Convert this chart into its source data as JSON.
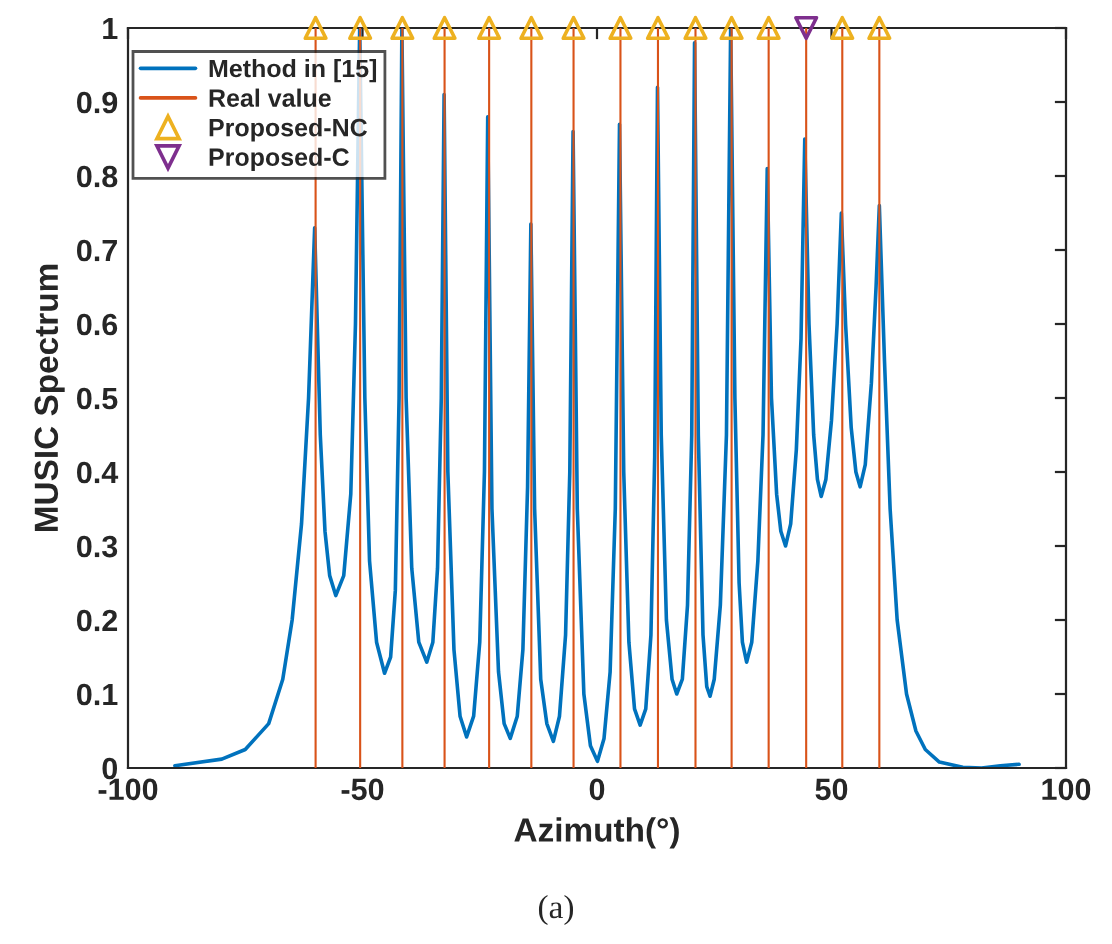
{
  "chart_data": {
    "type": "line",
    "xlabel": "Azimuth(°)",
    "ylabel": "MUSIC Spectrum",
    "xlim": [
      -100,
      100
    ],
    "xticks": [
      -100,
      -50,
      0,
      50,
      100
    ],
    "ylim": [
      0,
      1
    ],
    "yticks": [
      0,
      0.1,
      0.2,
      0.3,
      0.4,
      0.5,
      0.6,
      0.7,
      0.8,
      0.9,
      1
    ],
    "grid": false,
    "legend": "top left",
    "annotations": [
      "(a)"
    ],
    "series": [
      {
        "name": "Method in [15]",
        "color": "#0072bd",
        "marker": "none",
        "x": [
          -90,
          -80,
          -75,
          -70,
          -67,
          -65,
          -63,
          -61.5,
          -60.2,
          -59,
          -58,
          -57,
          -55.7,
          -54,
          -52.5,
          -51.5,
          -50.6,
          -49.5,
          -48.5,
          -47,
          -45.3,
          -44,
          -43,
          -42.2,
          -41.6,
          -40.7,
          -39.5,
          -38,
          -36.3,
          -35,
          -34,
          -33.2,
          -32.6,
          -31.8,
          -30.5,
          -29.2,
          -27.8,
          -26.3,
          -25,
          -24,
          -23.3,
          -22.4,
          -21,
          -19.8,
          -18.5,
          -17,
          -15.8,
          -14.8,
          -14.1,
          -13.3,
          -12,
          -10.7,
          -9.3,
          -8,
          -6.7,
          -5.8,
          -5.1,
          -4.2,
          -2.8,
          -1.4,
          0.1,
          1.5,
          2.8,
          3.9,
          4.8,
          5.7,
          6.8,
          8,
          9.2,
          10.4,
          11.5,
          12.3,
          12.9,
          13.7,
          14.8,
          16,
          17,
          18.2,
          19.3,
          20.2,
          20.8,
          21.6,
          22.6,
          23.4,
          24.1,
          25,
          26.3,
          27.6,
          28.5,
          29.4,
          30.3,
          31,
          31.9,
          33,
          34.3,
          35.4,
          36.3,
          37.2,
          38.3,
          39.2,
          40.2,
          41.3,
          42.5,
          43.5,
          44.3,
          45.2,
          46.2,
          47,
          47.8,
          48.8,
          50,
          51.2,
          52.1,
          53,
          54.2,
          55.2,
          56.1,
          57.2,
          58.5,
          59.5,
          60.2,
          61.3,
          62.5,
          64,
          66,
          68,
          70,
          73,
          78,
          82,
          86,
          90
        ],
        "values": [
          0.003,
          0.012,
          0.025,
          0.06,
          0.12,
          0.2,
          0.33,
          0.5,
          0.73,
          0.45,
          0.32,
          0.26,
          0.233,
          0.26,
          0.37,
          0.6,
          1.0,
          0.5,
          0.28,
          0.17,
          0.128,
          0.15,
          0.24,
          0.5,
          1.0,
          0.5,
          0.27,
          0.17,
          0.143,
          0.17,
          0.27,
          0.5,
          0.91,
          0.4,
          0.16,
          0.07,
          0.042,
          0.07,
          0.17,
          0.4,
          0.88,
          0.35,
          0.13,
          0.06,
          0.04,
          0.07,
          0.16,
          0.38,
          0.735,
          0.35,
          0.12,
          0.06,
          0.036,
          0.07,
          0.18,
          0.4,
          0.86,
          0.35,
          0.1,
          0.03,
          0.009,
          0.04,
          0.13,
          0.35,
          0.87,
          0.4,
          0.17,
          0.08,
          0.058,
          0.08,
          0.18,
          0.42,
          0.92,
          0.45,
          0.2,
          0.12,
          0.1,
          0.12,
          0.22,
          0.45,
          0.98,
          0.45,
          0.18,
          0.11,
          0.097,
          0.12,
          0.22,
          0.45,
          1.0,
          0.5,
          0.25,
          0.17,
          0.143,
          0.17,
          0.28,
          0.45,
          0.81,
          0.5,
          0.37,
          0.32,
          0.3,
          0.33,
          0.43,
          0.58,
          0.85,
          0.6,
          0.45,
          0.39,
          0.367,
          0.39,
          0.47,
          0.6,
          0.75,
          0.6,
          0.46,
          0.4,
          0.38,
          0.41,
          0.52,
          0.65,
          0.76,
          0.55,
          0.35,
          0.2,
          0.1,
          0.05,
          0.025,
          0.008,
          0.001,
          0,
          0.003,
          0.005
        ]
      },
      {
        "name": "Real value",
        "type": "bar",
        "color": "#d95319",
        "x": [
          -60,
          -50.5,
          -41.5,
          -32.5,
          -23,
          -14,
          -5,
          5,
          13,
          21,
          28.7,
          36.6,
          44.6,
          52.3,
          60.2
        ],
        "values": [
          1,
          1,
          1,
          1,
          1,
          1,
          1,
          1,
          1,
          1,
          1,
          1,
          1,
          1,
          1
        ]
      },
      {
        "name": "Proposed-NC",
        "type": "scatter",
        "color": "#edb120",
        "marker": "triangle",
        "x": [
          -60,
          -50.5,
          -41.5,
          -32.5,
          -23,
          -14,
          -5,
          5,
          13,
          21,
          28.7,
          36.6,
          52.3,
          60.2
        ],
        "values": [
          1,
          1,
          1,
          1,
          1,
          1,
          1,
          1,
          1,
          1,
          1,
          1,
          1,
          1
        ]
      },
      {
        "name": "Proposed-C",
        "type": "scatter",
        "color": "#7e2f8e",
        "marker": "triangle_down",
        "x": [
          44.6
        ],
        "values": [
          1
        ]
      }
    ]
  }
}
